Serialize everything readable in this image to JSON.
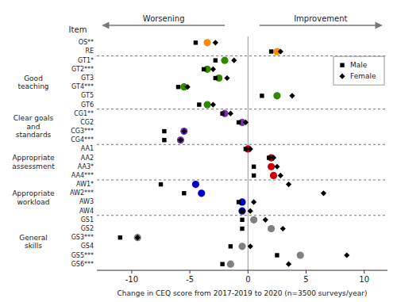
{
  "chart_data": {
    "type": "dot",
    "xlabel": "Change in CEQ score from 2017-2019 to 2020 (n=3500 surveys/year)",
    "ylabel": "Item",
    "annotations": [
      "Worsening",
      "Improvement"
    ],
    "xlim": [
      -13,
      12
    ],
    "xticks": [
      -10,
      -5,
      0,
      5,
      10
    ],
    "grid": false,
    "legend": "upper right",
    "categories": [
      "OS**",
      "RE",
      "GT1*",
      "GT2***",
      "GT3",
      "GT4***",
      "GT5",
      "GT6",
      "CG1**",
      "CG2",
      "CG3***",
      "CG4***",
      "AA1",
      "AA2",
      "AA3*",
      "AA4***",
      "AW1*",
      "AW2***",
      "AW3",
      "AW4",
      "GS1",
      "GS2",
      "GS3***",
      "GS4",
      "GS5***",
      "GS6***"
    ],
    "groups": [
      {
        "label": null,
        "size": 2
      },
      {
        "label": "Good\nteaching",
        "size": 6
      },
      {
        "label": "Clear goals\nand\nstandards",
        "size": 4
      },
      {
        "label": "Appropriate\nassessment",
        "size": 4
      },
      {
        "label": "Appropriate\nworkload",
        "size": 4
      },
      {
        "label": "General\nskills",
        "size": 6
      }
    ],
    "series": [
      {
        "marker": "circle",
        "colors": [
          "#FF8C00",
          "#FF8C00",
          "#2E8B00",
          "#2E8B00",
          "#2E8B00",
          "#2E8B00",
          "#2E8B00",
          "#2E8B00",
          "#7B2FBE",
          "#7B2FBE",
          "#7B2FBE",
          "#7B2FBE",
          "#CC0000",
          "#CC0000",
          "#CC0000",
          "#CC0000",
          "#0000CC",
          "#0000CC",
          "#0000CC",
          "#0000CC",
          "#808080",
          "#808080",
          "#808080",
          "#808080",
          "#808080",
          "#808080"
        ],
        "values": [
          -3.5,
          2.5,
          -2.0,
          -3.5,
          -2.5,
          -5.5,
          2.5,
          -3.5,
          -2.0,
          -0.5,
          -5.5,
          -5.8,
          0.0,
          2.0,
          2.0,
          2.2,
          -4.5,
          -4.0,
          -0.5,
          -0.5,
          0.5,
          2.0,
          -9.5,
          -0.5,
          4.5,
          -1.5
        ]
      },
      {
        "name": "Male",
        "color": "black",
        "marker": "square",
        "values": [
          -4.5,
          2.0,
          -2.8,
          -3.8,
          -2.8,
          -6.0,
          1.2,
          -4.2,
          -2.2,
          -0.8,
          -7.2,
          -7.2,
          -0.2,
          1.8,
          0.5,
          0.5,
          -7.5,
          -5.5,
          -0.8,
          -0.5,
          -0.5,
          -0.5,
          -11.0,
          -1.5,
          2.5,
          -2.2
        ]
      },
      {
        "name": "Female",
        "color": "black",
        "marker": "diamond",
        "values": [
          -2.8,
          2.8,
          -1.2,
          -3.0,
          -1.8,
          -5.2,
          3.8,
          -3.0,
          -1.5,
          -0.2,
          -5.5,
          -5.8,
          0.2,
          2.2,
          2.5,
          2.8,
          3.5,
          6.5,
          0.5,
          0.2,
          1.5,
          3.0,
          -9.5,
          0.2,
          8.5,
          3.5
        ]
      }
    ]
  }
}
